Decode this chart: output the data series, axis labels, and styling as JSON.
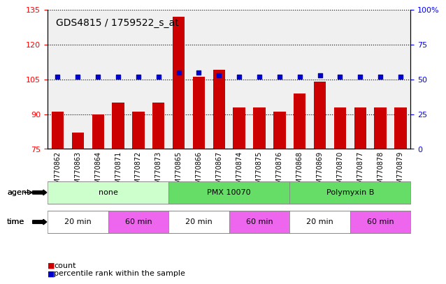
{
  "title": "GDS4815 / 1759522_s_at",
  "samples": [
    "GSM770862",
    "GSM770863",
    "GSM770864",
    "GSM770871",
    "GSM770872",
    "GSM770873",
    "GSM770865",
    "GSM770866",
    "GSM770867",
    "GSM770874",
    "GSM770875",
    "GSM770876",
    "GSM770868",
    "GSM770869",
    "GSM770870",
    "GSM770877",
    "GSM770878",
    "GSM770879"
  ],
  "counts": [
    91,
    82,
    90,
    95,
    91,
    95,
    132,
    106,
    109,
    93,
    93,
    91,
    99,
    104,
    93,
    93,
    93,
    93
  ],
  "percentiles": [
    52,
    52,
    52,
    52,
    52,
    52,
    55,
    55,
    53,
    52,
    52,
    52,
    52,
    53,
    52,
    52,
    52,
    52
  ],
  "ylim_left": [
    75,
    135
  ],
  "ylim_right": [
    0,
    100
  ],
  "yticks_left": [
    75,
    90,
    105,
    120,
    135
  ],
  "yticks_right": [
    0,
    25,
    50,
    75,
    100
  ],
  "bar_color": "#cc0000",
  "dot_color": "#0000cc",
  "grid_color": "#000000",
  "bg_color": "#ffffff",
  "agent_groups": [
    {
      "label": "none",
      "start": 0,
      "end": 6,
      "color": "#ccffcc"
    },
    {
      "label": "PMX 10070",
      "start": 6,
      "end": 12,
      "color": "#66dd66"
    },
    {
      "label": "Polymyxin B",
      "start": 12,
      "end": 18,
      "color": "#66dd66"
    }
  ],
  "time_groups": [
    {
      "label": "20 min",
      "start": 0,
      "end": 3,
      "color": "#ffffff"
    },
    {
      "label": "60 min",
      "start": 3,
      "end": 6,
      "color": "#ee66ee"
    },
    {
      "label": "20 min",
      "start": 6,
      "end": 9,
      "color": "#ffffff"
    },
    {
      "label": "60 min",
      "start": 9,
      "end": 12,
      "color": "#ee66ee"
    },
    {
      "label": "20 min",
      "start": 12,
      "end": 15,
      "color": "#ffffff"
    },
    {
      "label": "60 min",
      "start": 15,
      "end": 18,
      "color": "#ee66ee"
    }
  ],
  "legend_items": [
    {
      "label": "count",
      "color": "#cc0000"
    },
    {
      "label": "percentile rank within the sample",
      "color": "#0000cc"
    }
  ]
}
